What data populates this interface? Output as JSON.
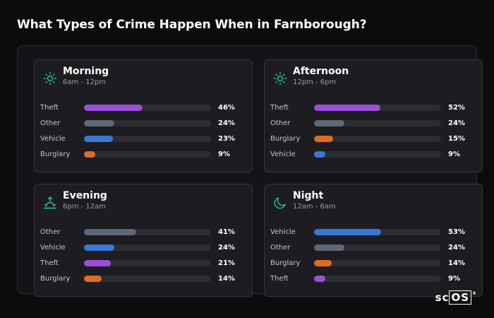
{
  "page": {
    "title": "What Types of Crime Happen When in Farnborough?"
  },
  "colors": {
    "Theft": "#9b4fd6",
    "Other": "#5f6878",
    "Vehicle": "#3a78d6",
    "Burglary": "#e06c1e",
    "icon": "#2bc49a"
  },
  "chart_data": [
    {
      "type": "bar",
      "title": "Morning",
      "subtitle": "6am - 12pm",
      "icon": "sun-icon",
      "categories": [
        "Theft",
        "Other",
        "Vehicle",
        "Burglary"
      ],
      "values": [
        46,
        24,
        23,
        9
      ],
      "value_labels": [
        "46%",
        "24%",
        "23%",
        "9%"
      ],
      "ylim": [
        0,
        100
      ]
    },
    {
      "type": "bar",
      "title": "Afternoon",
      "subtitle": "12pm - 6pm",
      "icon": "sun-icon",
      "categories": [
        "Theft",
        "Other",
        "Burglary",
        "Vehicle"
      ],
      "values": [
        52,
        24,
        15,
        9
      ],
      "value_labels": [
        "52%",
        "24%",
        "15%",
        "9%"
      ],
      "ylim": [
        0,
        100
      ]
    },
    {
      "type": "bar",
      "title": "Evening",
      "subtitle": "6pm - 12am",
      "icon": "sunset-icon",
      "categories": [
        "Other",
        "Vehicle",
        "Theft",
        "Burglary"
      ],
      "values": [
        41,
        24,
        21,
        14
      ],
      "value_labels": [
        "41%",
        "24%",
        "21%",
        "14%"
      ],
      "ylim": [
        0,
        100
      ]
    },
    {
      "type": "bar",
      "title": "Night",
      "subtitle": "12am - 6am",
      "icon": "moon-icon",
      "categories": [
        "Vehicle",
        "Other",
        "Burglary",
        "Theft"
      ],
      "values": [
        53,
        24,
        14,
        9
      ],
      "value_labels": [
        "53%",
        "24%",
        "14%",
        "9%"
      ],
      "ylim": [
        0,
        100
      ]
    }
  ],
  "logo": {
    "text_a": "sc",
    "text_b": "OS",
    "mark": "®"
  }
}
